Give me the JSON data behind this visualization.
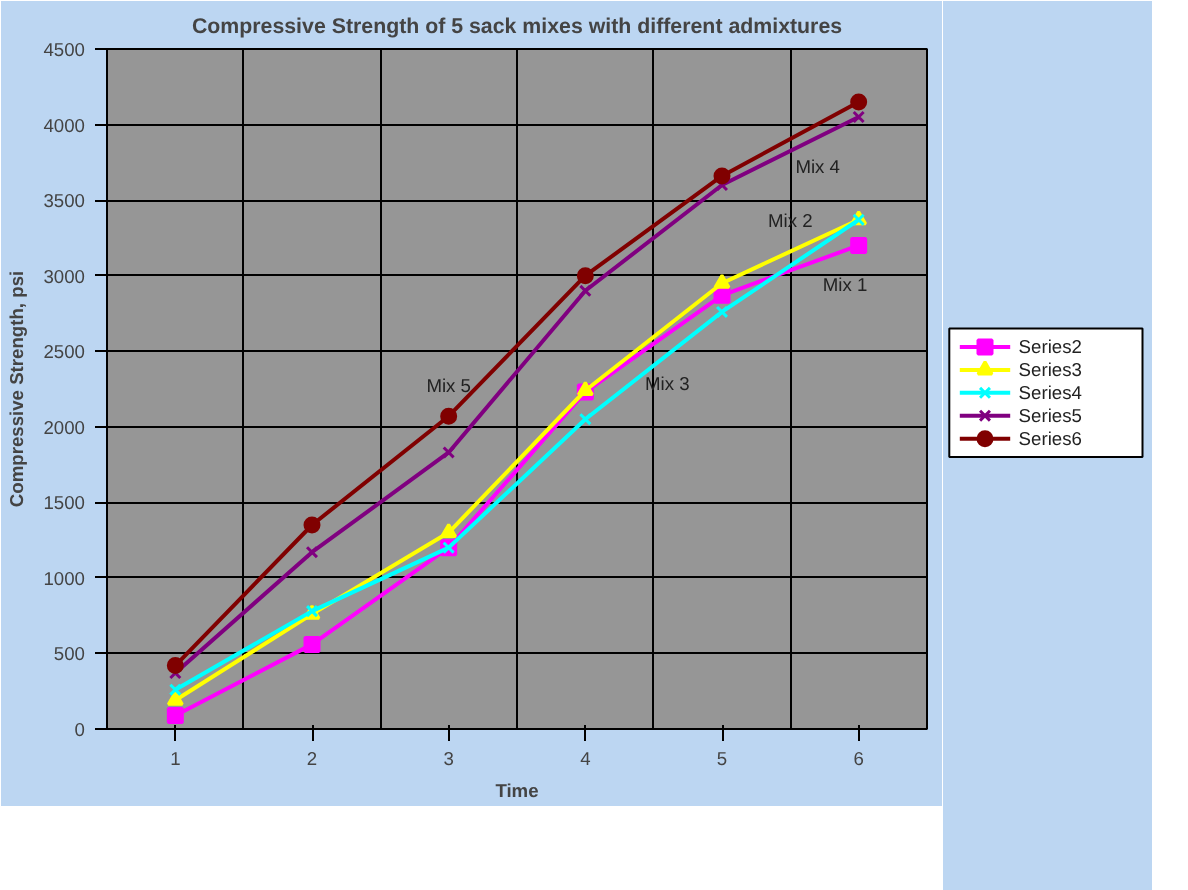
{
  "chart_data": {
    "type": "line",
    "title": "Compressive Strength of 5 sack mixes with different admixtures",
    "xlabel": "Time",
    "ylabel": "Compressive Strength, psi",
    "x": [
      1,
      2,
      3,
      4,
      5,
      6
    ],
    "xlim": [
      0.5,
      6.5
    ],
    "xticks": [
      1,
      2,
      3,
      4,
      5,
      6
    ],
    "ylim": [
      0,
      4500
    ],
    "yticks": [
      0,
      500,
      1000,
      1500,
      2000,
      2500,
      3000,
      3500,
      4000,
      4500
    ],
    "grid": true,
    "legend": "right",
    "series": [
      {
        "name": "Series2",
        "color": "#ff00ff",
        "marker": "square",
        "values": [
          90,
          560,
          1200,
          2230,
          2870,
          3200
        ]
      },
      {
        "name": "Series3",
        "color": "#ffff00",
        "marker": "triangle",
        "values": [
          190,
          760,
          1300,
          2240,
          2950,
          3370
        ]
      },
      {
        "name": "Series4",
        "color": "#00ffff",
        "marker": "cross",
        "values": [
          260,
          780,
          1200,
          2050,
          2760,
          3370
        ]
      },
      {
        "name": "Series5",
        "color": "#800080",
        "marker": "cross",
        "values": [
          370,
          1170,
          1830,
          2900,
          3600,
          4050
        ]
      },
      {
        "name": "Series6",
        "color": "#800000",
        "marker": "circle",
        "values": [
          420,
          1350,
          2070,
          3000,
          3660,
          4150
        ]
      }
    ],
    "annotations": [
      {
        "text": "Mix 5",
        "x": 3,
        "y": 2070
      },
      {
        "text": "Mix 3",
        "x": 4.6,
        "y": 2480
      },
      {
        "text": "Mix 2",
        "x": 5.5,
        "y": 3160
      },
      {
        "text": "Mix 4",
        "x": 5.7,
        "y": 3920
      },
      {
        "text": "Mix 1",
        "x": 5.9,
        "y": 3140
      }
    ]
  }
}
